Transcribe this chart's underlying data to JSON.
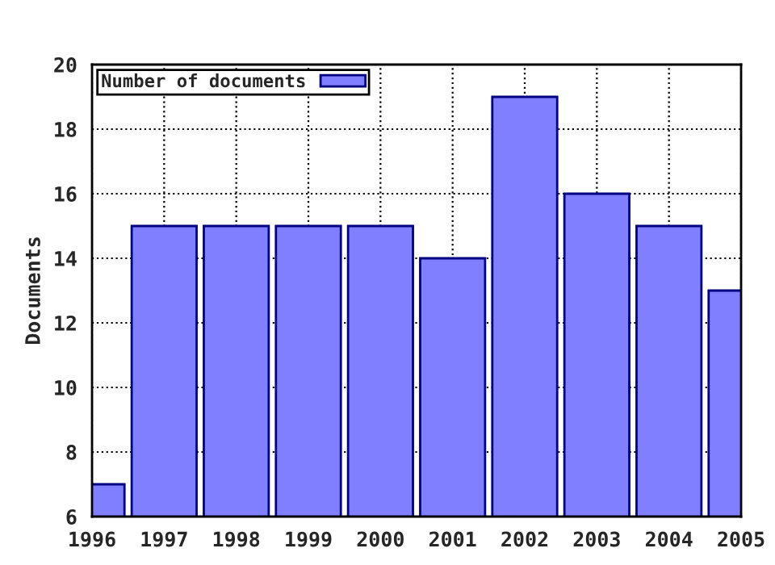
{
  "chart_data": {
    "type": "bar",
    "ylabel": "Documents",
    "x": [
      1996,
      1997,
      1998,
      1999,
      2000,
      2001,
      2002,
      2003,
      2004,
      2005
    ],
    "series": [
      {
        "name": "Number of documents",
        "color": "#7f7fff",
        "values": [
          7,
          15,
          15,
          15,
          15,
          14,
          19,
          16,
          15,
          13
        ]
      }
    ],
    "xlim": [
      1996,
      2005
    ],
    "xticks": [
      1996,
      1997,
      1998,
      1999,
      2000,
      2001,
      2002,
      2003,
      2004,
      2005
    ],
    "ylim": [
      6,
      20
    ],
    "yticks": [
      6,
      8,
      10,
      12,
      14,
      16,
      18,
      20
    ],
    "grid": true,
    "legend": "top left",
    "line_style": "dotted"
  }
}
